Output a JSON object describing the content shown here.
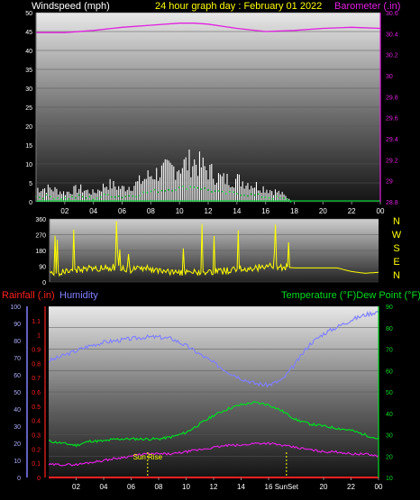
{
  "header": {
    "left_title": "Windspeed (mph)",
    "center_title": "24 hour graph day : February 01 2022",
    "right_title": "Barometer (.in)"
  },
  "colors": {
    "wind": "#ffffff",
    "gust_band": "#c8c8c8",
    "avg_wind": "#00cc33",
    "barometer": "#e020e0",
    "direction": "#ffff00",
    "rain": "#ff2020",
    "humidity": "#8080ff",
    "temperature": "#00dd22",
    "dew_point": "#e020e0",
    "sun_marker": "#ffff00",
    "axis_text": "#ffffff"
  },
  "chart_data": [
    {
      "type": "line",
      "title": "24 hour graph day : February 01 2022",
      "x_ticks": [
        "02",
        "04",
        "06",
        "08",
        "10",
        "12",
        "14",
        "16",
        "18",
        "20",
        "22",
        "00"
      ],
      "x_range": [
        0,
        24
      ],
      "y_left": {
        "label": "Windspeed (mph)",
        "range": [
          0,
          50
        ],
        "ticks": [
          0,
          5,
          10,
          15,
          20,
          25,
          30,
          35,
          40,
          45,
          50
        ]
      },
      "y_right": {
        "label": "Barometer (.in)",
        "range": [
          28.8,
          30.6
        ],
        "ticks": [
          "28.8",
          "29",
          "29.2",
          "29.4",
          "29.6",
          "29.8",
          "30",
          "30.2",
          "30.4",
          "30.6"
        ]
      },
      "series": [
        {
          "name": "Windspeed (mph)",
          "axis": "left",
          "x": [
            0,
            1,
            2,
            3,
            4,
            5,
            6,
            7,
            8,
            9,
            10,
            11,
            12,
            13,
            14,
            15,
            16,
            17,
            18,
            19,
            20,
            21,
            22,
            23,
            24
          ],
          "y": [
            3,
            3,
            2,
            3,
            2,
            4,
            3,
            4,
            6,
            7,
            8,
            9,
            7,
            5,
            5,
            4,
            3,
            2,
            0,
            0,
            0,
            0,
            0,
            0,
            0
          ]
        },
        {
          "name": "Barometer (.in)",
          "axis": "right",
          "x": [
            0,
            2,
            4,
            6,
            8,
            10,
            11,
            12,
            14,
            16,
            18,
            20,
            22,
            24
          ],
          "y": [
            30.41,
            30.41,
            30.43,
            30.46,
            30.48,
            30.5,
            30.5,
            30.49,
            30.45,
            30.42,
            30.43,
            30.45,
            30.46,
            30.45
          ]
        }
      ]
    },
    {
      "type": "line",
      "y_right_labels": [
        "N",
        "W",
        "S",
        "E",
        "N"
      ],
      "y_left": {
        "range": [
          0,
          360
        ],
        "ticks": [
          0,
          90,
          180,
          270,
          360
        ]
      },
      "series": [
        {
          "name": "Wind Direction",
          "x": [
            0,
            1,
            2,
            3,
            4,
            5,
            6,
            7,
            8,
            9,
            10,
            11,
            12,
            13,
            14,
            15,
            16,
            17,
            18,
            19,
            20,
            21,
            22,
            23,
            24
          ],
          "y": [
            45,
            60,
            70,
            75,
            80,
            85,
            70,
            80,
            60,
            60,
            50,
            55,
            60,
            65,
            75,
            80,
            90,
            85,
            80,
            80,
            80,
            80,
            60,
            50,
            55
          ]
        }
      ]
    },
    {
      "type": "line",
      "x_ticks": [
        "02",
        "04",
        "06",
        "08",
        "10",
        "12",
        "14",
        "16",
        "18",
        "20",
        "22",
        "00"
      ],
      "x_range": [
        0,
        24
      ],
      "y_rain": {
        "label": "Rainfall (.in)",
        "range": [
          0,
          1.2
        ],
        "ticks": [
          "0",
          "0.1",
          "0.2",
          "0.3",
          "0.4",
          "0.5",
          "0.6",
          "0.7",
          "0.8",
          "0.9",
          "1",
          "1.1"
        ]
      },
      "y_humidity": {
        "label": "Humidity",
        "range": [
          0,
          100
        ],
        "ticks": [
          0,
          10,
          20,
          30,
          40,
          50,
          60,
          70,
          80,
          90,
          100
        ]
      },
      "y_temp": {
        "label": "Temperature (°F)Dew Point (°F)",
        "range": [
          10,
          90
        ],
        "ticks": [
          10,
          20,
          30,
          40,
          50,
          60,
          70,
          80,
          90
        ]
      },
      "annotations": [
        {
          "text": "Sun Rise",
          "x": 7.2
        },
        {
          "text": "SunSet",
          "x": 17.3
        }
      ],
      "series": [
        {
          "name": "Humidity",
          "axis": "humidity",
          "x": [
            0,
            1,
            2,
            3,
            4,
            5,
            6,
            7,
            8,
            9,
            10,
            11,
            12,
            13,
            14,
            15,
            16,
            17,
            18,
            19,
            20,
            21,
            22,
            23,
            24
          ],
          "y": [
            68,
            71,
            74,
            77,
            79,
            80,
            81,
            82,
            82,
            81,
            77,
            72,
            67,
            62,
            58,
            55,
            54,
            57,
            67,
            78,
            84,
            88,
            92,
            95,
            97
          ]
        },
        {
          "name": "Temperature (°F)",
          "axis": "temp",
          "x": [
            0,
            1,
            2,
            3,
            4,
            5,
            6,
            7,
            8,
            9,
            10,
            11,
            12,
            13,
            14,
            15,
            16,
            17,
            18,
            19,
            20,
            21,
            22,
            23,
            24
          ],
          "y": [
            27,
            26,
            25,
            27,
            27,
            28,
            28,
            28,
            28,
            29,
            31,
            35,
            39,
            42,
            44,
            45,
            44,
            41,
            37,
            35,
            34,
            33,
            32,
            30,
            28
          ]
        },
        {
          "name": "Dew Point (°F)",
          "axis": "temp",
          "x": [
            0,
            1,
            2,
            3,
            4,
            5,
            6,
            7,
            8,
            9,
            10,
            11,
            12,
            13,
            14,
            15,
            16,
            17,
            18,
            19,
            20,
            21,
            22,
            23,
            24
          ],
          "y": [
            16,
            16,
            16,
            17,
            18,
            19,
            20,
            21,
            21,
            21,
            22,
            23,
            24,
            25,
            25,
            26,
            26,
            25,
            24,
            23,
            22,
            22,
            21,
            21,
            20
          ]
        },
        {
          "name": "Rainfall (.in)",
          "axis": "rain",
          "x": [
            0,
            24
          ],
          "y": [
            0,
            0
          ]
        }
      ]
    }
  ]
}
